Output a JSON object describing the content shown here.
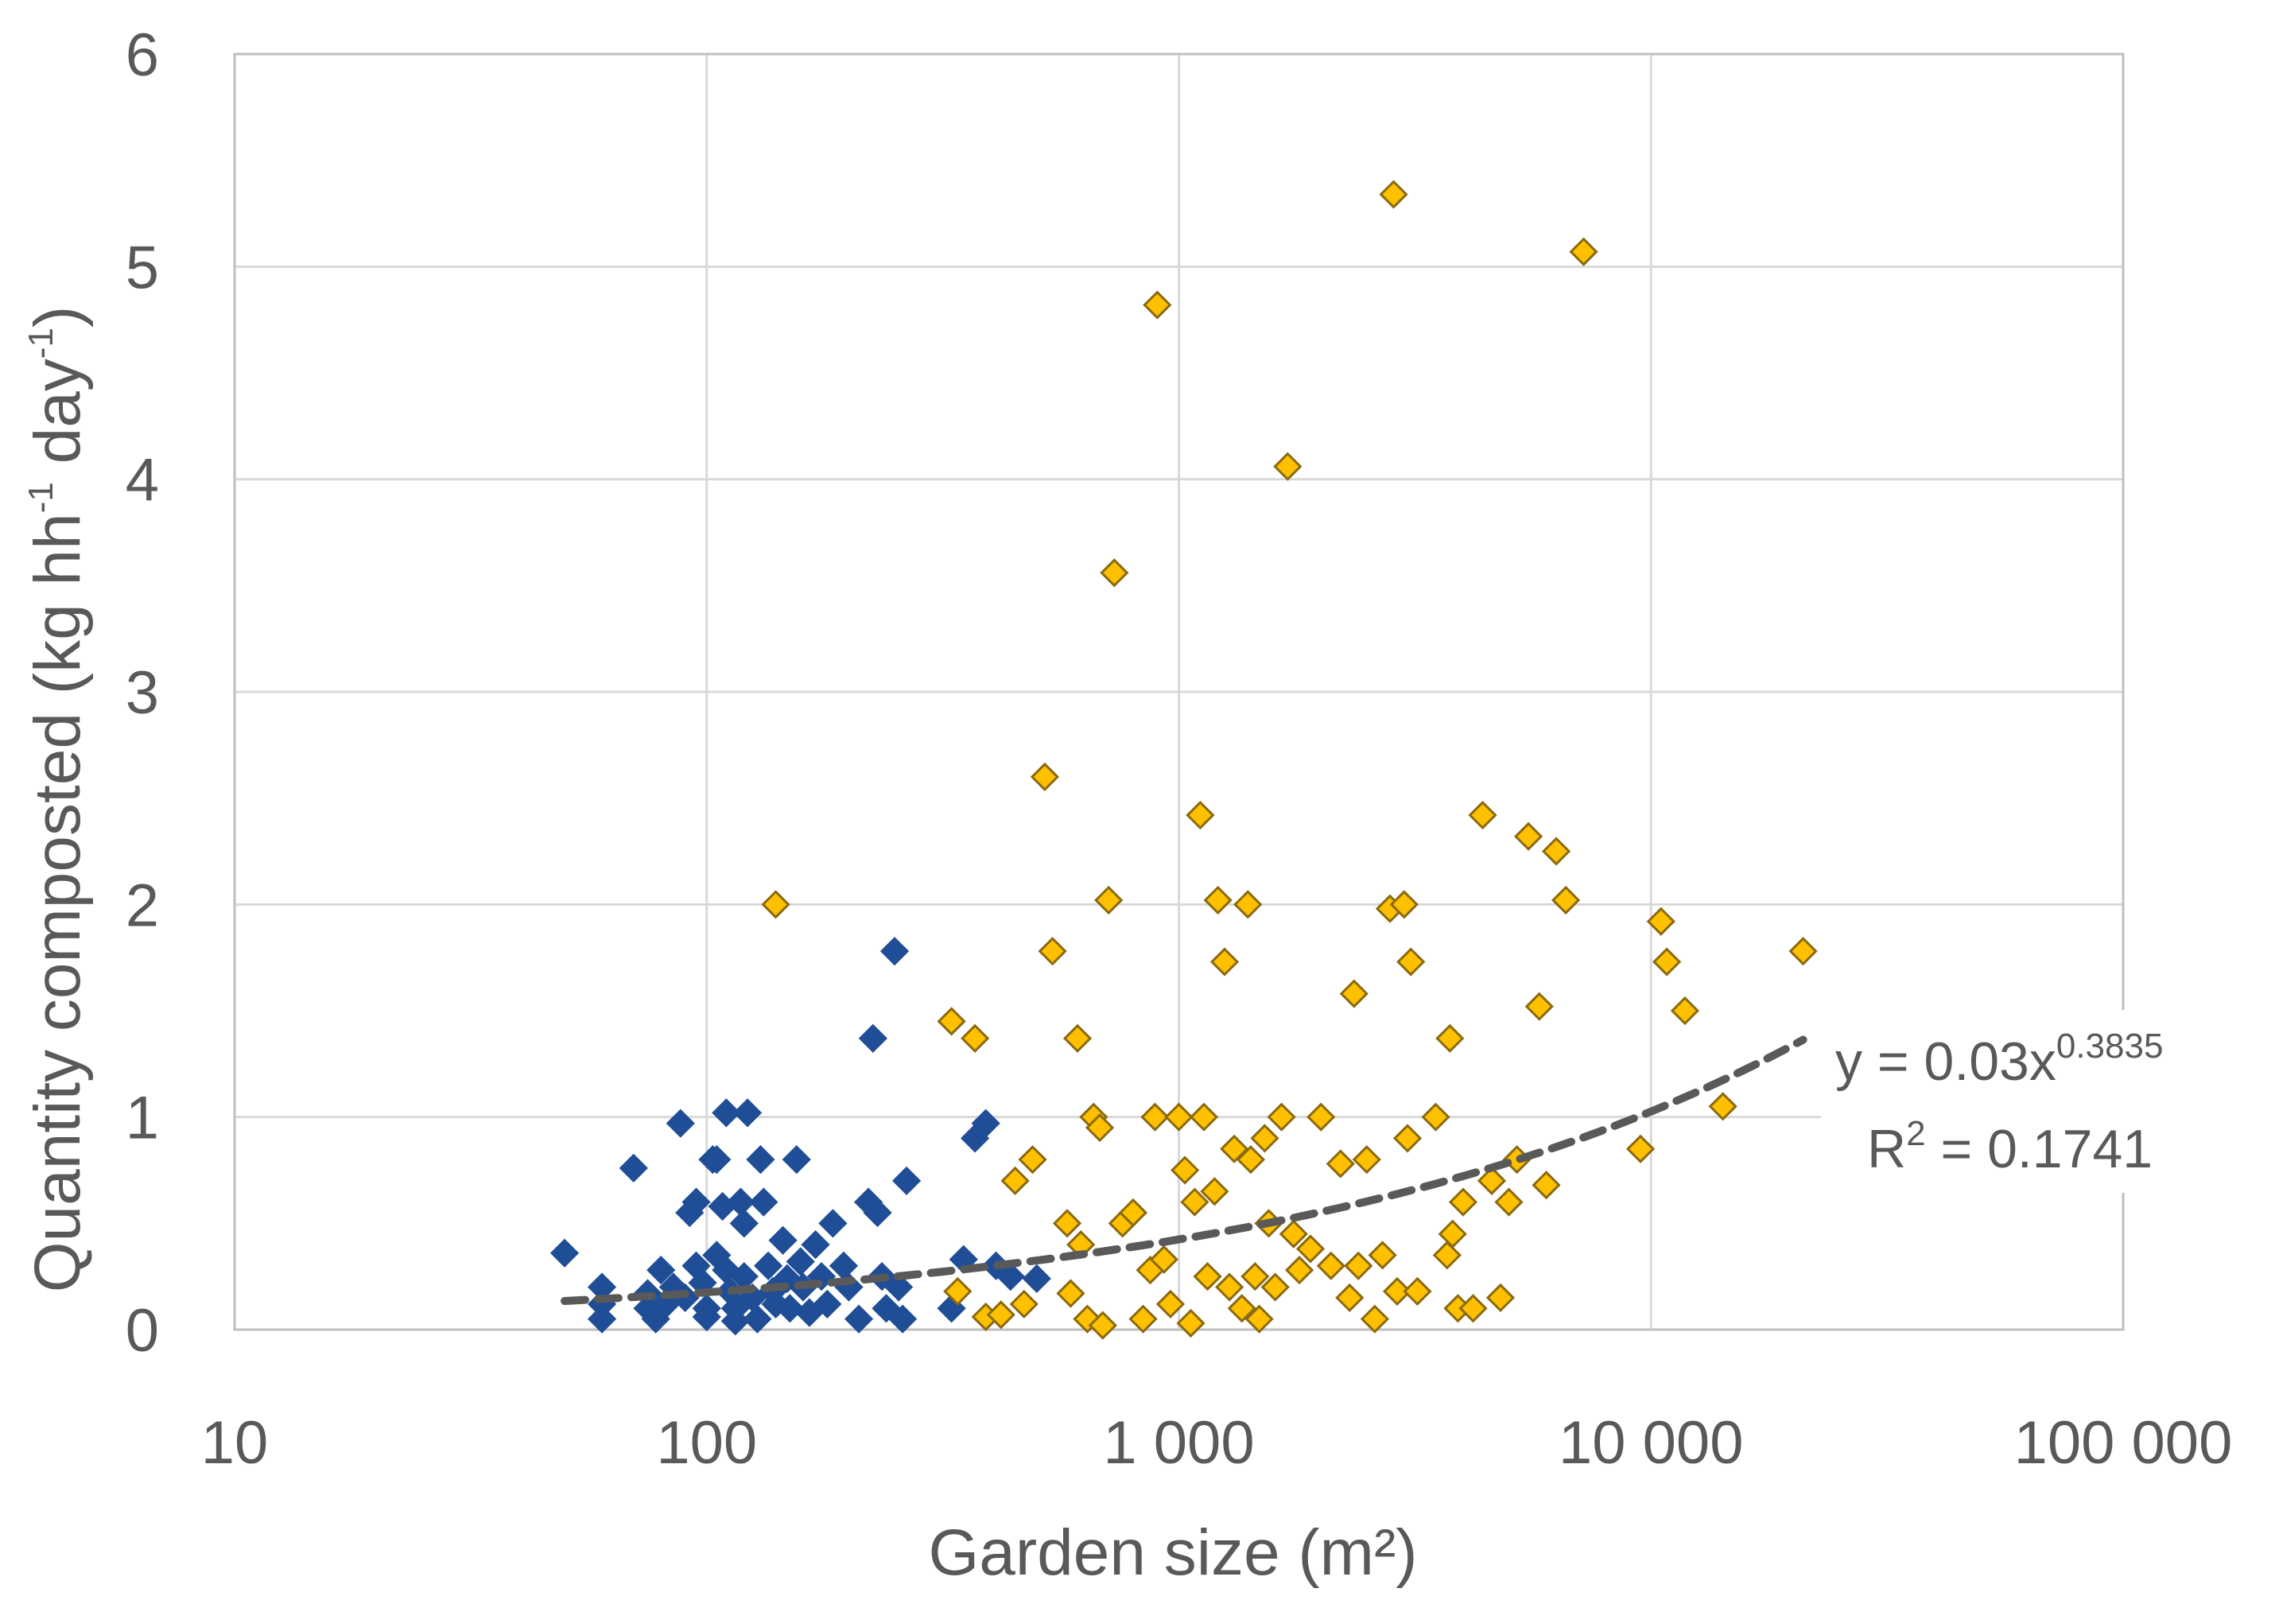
{
  "chart_data": {
    "type": "scatter",
    "title": "",
    "xlabel": "Garden size (m²)",
    "ylabel": "Quantity composted (kg hh-1 day-1)",
    "ylabel_parts": {
      "a": "Quantity composted (kg hh",
      "b": "-1",
      "c": " day",
      "d": "-1",
      "e": ")"
    },
    "xscale": "log",
    "xlim": [
      10,
      100000
    ],
    "ylim": [
      0,
      6
    ],
    "grid": true,
    "legend": "none",
    "x_ticks": [
      {
        "value": 10,
        "label": "10"
      },
      {
        "value": 100,
        "label": "100"
      },
      {
        "value": 1000,
        "label": "1 000"
      },
      {
        "value": 10000,
        "label": "10 000"
      },
      {
        "value": 100000,
        "label": "100 000"
      }
    ],
    "y_ticks": [
      {
        "value": 0,
        "label": "0"
      },
      {
        "value": 1,
        "label": "1"
      },
      {
        "value": 2,
        "label": "2"
      },
      {
        "value": 3,
        "label": "3"
      },
      {
        "value": 4,
        "label": "4"
      },
      {
        "value": 5,
        "label": "5"
      },
      {
        "value": 6,
        "label": "6"
      }
    ],
    "series": [
      {
        "color": "#1f4e96",
        "edge": "#1f4e96",
        "marker": "diamond",
        "points": [
          [
            50,
            0.36
          ],
          [
            60,
            0.2
          ],
          [
            60,
            0.12
          ],
          [
            60,
            0.05
          ],
          [
            70,
            0.76
          ],
          [
            75,
            0.17
          ],
          [
            75,
            0.1
          ],
          [
            78,
            0.05
          ],
          [
            80,
            0.28
          ],
          [
            82,
            0.12
          ],
          [
            85,
            0.2
          ],
          [
            88,
            0.97
          ],
          [
            90,
            0.15
          ],
          [
            92,
            0.55
          ],
          [
            95,
            0.6
          ],
          [
            95,
            0.3
          ],
          [
            98,
            0.22
          ],
          [
            100,
            0.1
          ],
          [
            100,
            0.06
          ],
          [
            103,
            0.8
          ],
          [
            105,
            0.8
          ],
          [
            105,
            0.35
          ],
          [
            108,
            0.58
          ],
          [
            110,
            0.28
          ],
          [
            110,
            1.02
          ],
          [
            112,
            0.18
          ],
          [
            115,
            0.1
          ],
          [
            115,
            0.04
          ],
          [
            118,
            0.6
          ],
          [
            120,
            0.5
          ],
          [
            120,
            0.25
          ],
          [
            122,
            1.02
          ],
          [
            125,
            0.15
          ],
          [
            128,
            0.05
          ],
          [
            130,
            0.8
          ],
          [
            132,
            0.6
          ],
          [
            135,
            0.3
          ],
          [
            138,
            0.18
          ],
          [
            140,
            0.12
          ],
          [
            145,
            0.42
          ],
          [
            148,
            0.24
          ],
          [
            150,
            0.1
          ],
          [
            155,
            0.8
          ],
          [
            158,
            0.32
          ],
          [
            160,
            0.2
          ],
          [
            165,
            0.08
          ],
          [
            170,
            0.4
          ],
          [
            175,
            0.25
          ],
          [
            180,
            0.12
          ],
          [
            185,
            0.5
          ],
          [
            195,
            0.3
          ],
          [
            200,
            0.2
          ],
          [
            210,
            0.05
          ],
          [
            220,
            0.6
          ],
          [
            225,
            1.37
          ],
          [
            230,
            0.55
          ],
          [
            235,
            0.25
          ],
          [
            240,
            0.1
          ],
          [
            250,
            1.78
          ],
          [
            255,
            0.2
          ],
          [
            260,
            0.05
          ],
          [
            265,
            0.7
          ],
          [
            330,
            0.1
          ],
          [
            350,
            0.33
          ],
          [
            370,
            0.9
          ],
          [
            390,
            0.97
          ],
          [
            410,
            0.3
          ],
          [
            440,
            0.25
          ],
          [
            500,
            0.24
          ]
        ]
      },
      {
        "color": "#ffc000",
        "edge": "#8a6a10",
        "marker": "diamond",
        "points": [
          [
            140,
            2.0
          ],
          [
            330,
            1.45
          ],
          [
            340,
            0.18
          ],
          [
            370,
            1.37
          ],
          [
            390,
            0.06
          ],
          [
            420,
            0.07
          ],
          [
            450,
            0.7
          ],
          [
            470,
            0.12
          ],
          [
            490,
            0.8
          ],
          [
            520,
            2.6
          ],
          [
            540,
            1.78
          ],
          [
            580,
            0.5
          ],
          [
            590,
            0.17
          ],
          [
            610,
            1.37
          ],
          [
            620,
            0.4
          ],
          [
            640,
            0.05
          ],
          [
            660,
            1.0
          ],
          [
            680,
            0.95
          ],
          [
            690,
            0.02
          ],
          [
            710,
            2.02
          ],
          [
            730,
            3.56
          ],
          [
            760,
            0.5
          ],
          [
            800,
            0.55
          ],
          [
            840,
            0.05
          ],
          [
            870,
            0.28
          ],
          [
            890,
            1.0
          ],
          [
            900,
            4.82
          ],
          [
            930,
            0.33
          ],
          [
            960,
            0.12
          ],
          [
            1000,
            1.0
          ],
          [
            1030,
            0.75
          ],
          [
            1060,
            0.03
          ],
          [
            1080,
            0.6
          ],
          [
            1110,
            2.42
          ],
          [
            1130,
            1.0
          ],
          [
            1150,
            0.25
          ],
          [
            1190,
            0.65
          ],
          [
            1210,
            2.02
          ],
          [
            1250,
            1.73
          ],
          [
            1280,
            0.2
          ],
          [
            1310,
            0.85
          ],
          [
            1360,
            0.1
          ],
          [
            1400,
            2.0
          ],
          [
            1420,
            0.8
          ],
          [
            1450,
            0.25
          ],
          [
            1480,
            0.05
          ],
          [
            1520,
            0.9
          ],
          [
            1550,
            0.5
          ],
          [
            1600,
            0.2
          ],
          [
            1650,
            1.0
          ],
          [
            1700,
            4.06
          ],
          [
            1750,
            0.45
          ],
          [
            1800,
            0.28
          ],
          [
            1900,
            0.38
          ],
          [
            2000,
            1.0
          ],
          [
            2100,
            0.3
          ],
          [
            2200,
            0.78
          ],
          [
            2300,
            0.15
          ],
          [
            2350,
            1.58
          ],
          [
            2400,
            0.3
          ],
          [
            2500,
            0.8
          ],
          [
            2600,
            0.05
          ],
          [
            2700,
            0.35
          ],
          [
            2800,
            1.98
          ],
          [
            2850,
            5.34
          ],
          [
            2900,
            0.18
          ],
          [
            3000,
            2.0
          ],
          [
            3050,
            0.9
          ],
          [
            3100,
            1.73
          ],
          [
            3200,
            0.18
          ],
          [
            3500,
            1.0
          ],
          [
            3700,
            0.35
          ],
          [
            3750,
            1.37
          ],
          [
            3800,
            0.45
          ],
          [
            3900,
            0.1
          ],
          [
            4000,
            0.6
          ],
          [
            4200,
            0.1
          ],
          [
            4400,
            2.42
          ],
          [
            4600,
            0.7
          ],
          [
            4800,
            0.15
          ],
          [
            5000,
            0.6
          ],
          [
            5200,
            0.8
          ],
          [
            5500,
            2.32
          ],
          [
            5800,
            1.52
          ],
          [
            6000,
            0.68
          ],
          [
            6300,
            2.25
          ],
          [
            6600,
            2.02
          ],
          [
            7200,
            5.07
          ],
          [
            9500,
            0.85
          ],
          [
            10500,
            1.92
          ],
          [
            10800,
            1.73
          ],
          [
            11800,
            1.5
          ],
          [
            14200,
            1.05
          ],
          [
            21000,
            1.78
          ]
        ]
      }
    ],
    "trendline": {
      "type": "power",
      "a": 0.03,
      "b": 0.3835,
      "x_range": [
        50,
        21000
      ],
      "color": "#595959",
      "style": "dashed"
    },
    "annotation": {
      "eq_main": "y = 0.03x",
      "eq_exp": "0.3835",
      "r2_label": "R",
      "r2_exp": "2",
      "r2_value": " = 0.1741"
    }
  }
}
